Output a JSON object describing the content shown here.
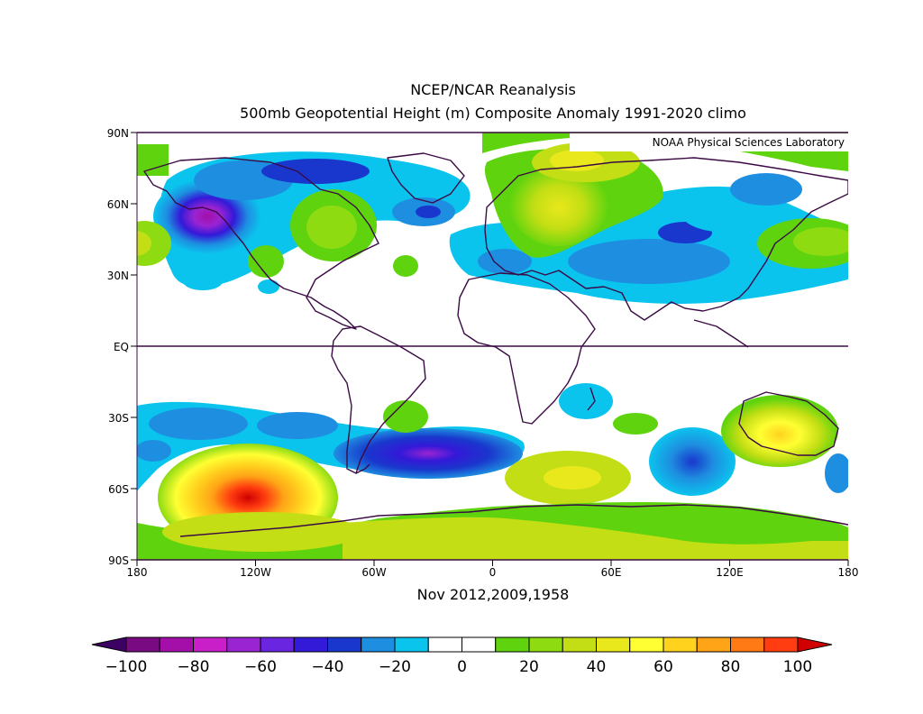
{
  "title": {
    "line1": "NCEP/NCAR Reanalysis",
    "line2": "500mb Geopotential Height (m) Composite Anomaly 1991-2020 climo"
  },
  "credit": "NOAA Physical Sciences Laboratory",
  "subtitle": "Nov 2012,2009,1958",
  "map": {
    "lon_ticks": [
      "180",
      "120W",
      "60W",
      "0",
      "60E",
      "120E",
      "180"
    ],
    "lat_ticks": [
      "90N",
      "60N",
      "30N",
      "EQ",
      "30S",
      "60S",
      "90S"
    ]
  },
  "colorbar": {
    "labels": [
      "-100",
      "-80",
      "-60",
      "-40",
      "-20",
      "0",
      "20",
      "40",
      "60",
      "80",
      "100"
    ],
    "colors": [
      "#3d0063",
      "#7a0a82",
      "#a30fa8",
      "#c81fc9",
      "#9b24d2",
      "#6a25e0",
      "#3319d8",
      "#1937cc",
      "#1e8ee0",
      "#0bc4ee",
      "#ffffff",
      "#ffffff",
      "#5fd40e",
      "#8edb12",
      "#c3de14",
      "#e8e81c",
      "#ffff33",
      "#ffd21e",
      "#ffa416",
      "#ff7a14",
      "#ff3d10",
      "#d00000"
    ]
  },
  "chart_data": {
    "type": "heatmap",
    "variable": "500mb Geopotential Height (m) Composite Anomaly 1991-2020 climo",
    "period": "Nov 2012,2009,1958",
    "contour_interval": 10,
    "range": [
      -100,
      100
    ],
    "anomaly_centers": [
      {
        "lon": -140,
        "lat": 53,
        "value": -65
      },
      {
        "lon": -75,
        "lat": 53,
        "value": 20
      },
      {
        "lon": -40,
        "lat": 57,
        "value": -30
      },
      {
        "lon": 20,
        "lat": 65,
        "value": 40
      },
      {
        "lon": 90,
        "lat": 47,
        "value": -30
      },
      {
        "lon": -120,
        "lat": -62,
        "value": 90
      },
      {
        "lon": -10,
        "lat": -43,
        "value": -45
      },
      {
        "lon": 100,
        "lat": -48,
        "value": -40
      },
      {
        "lon": 148,
        "lat": -38,
        "value": 40
      },
      {
        "lon": 30,
        "lat": -55,
        "value": 40
      },
      {
        "lon": -90,
        "lat": -80,
        "value": 30
      }
    ]
  }
}
